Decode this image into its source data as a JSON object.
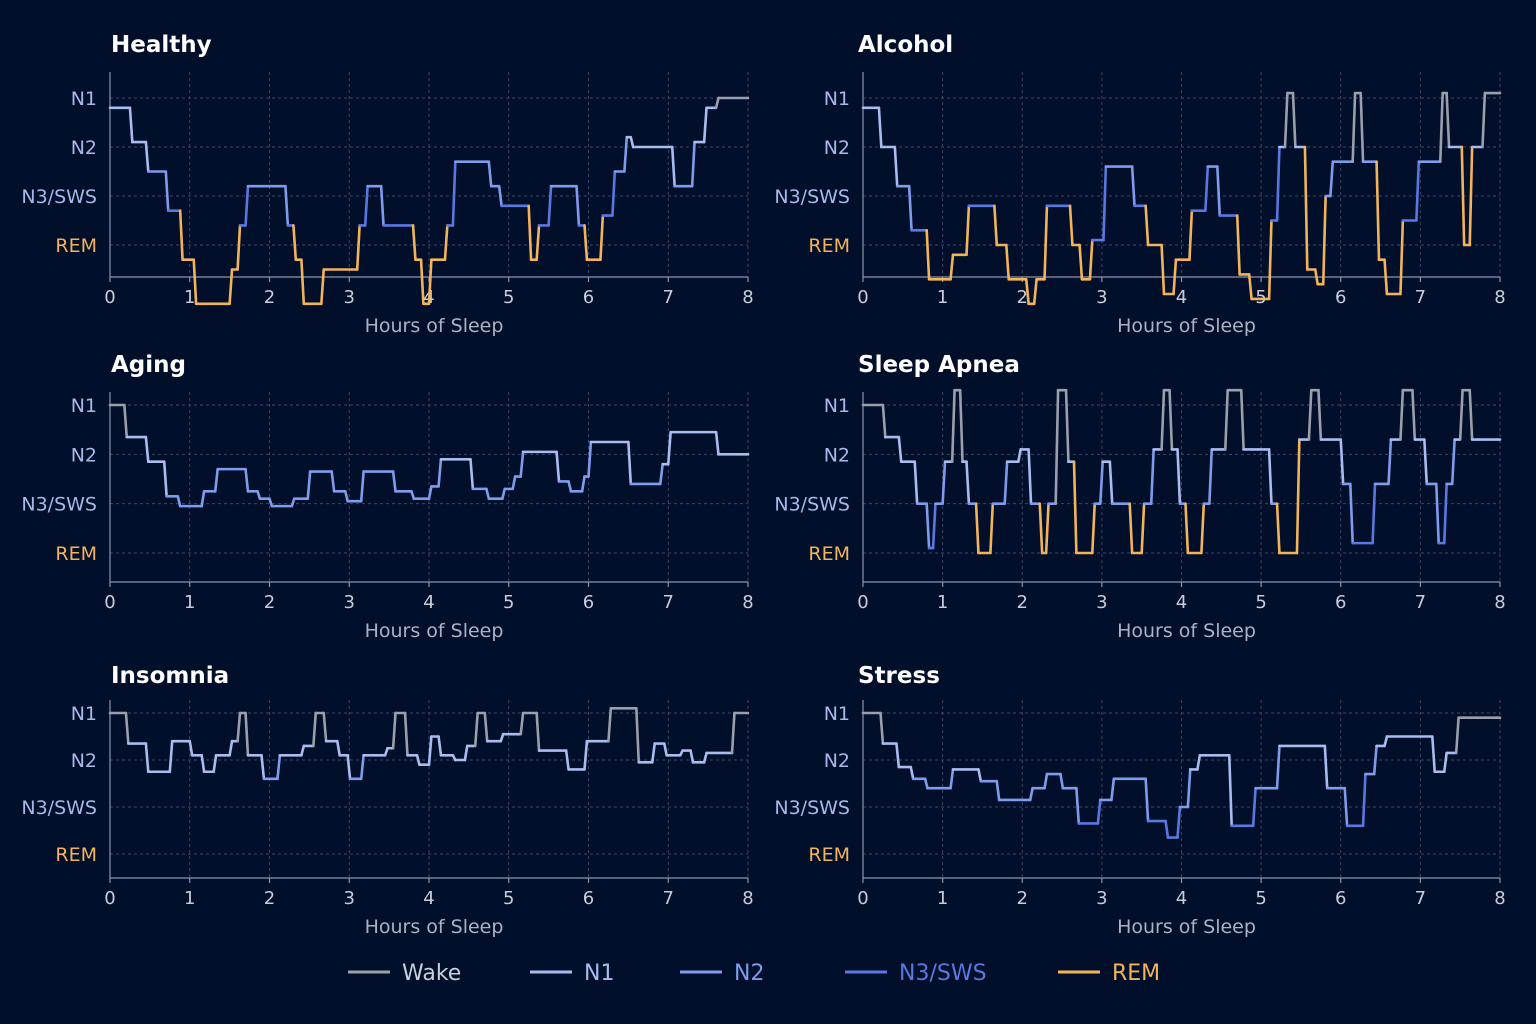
{
  "chart_data": [
    {
      "type": "line",
      "title": "Healthy",
      "xlabel": "Hours of Sleep",
      "xlim": [
        0,
        8
      ],
      "x_ticks": [
        "0",
        "1",
        "2",
        "3",
        "4",
        "5",
        "6",
        "7",
        "8"
      ],
      "y_ticks": [
        "N1",
        "N2",
        "N3/SWS",
        "REM"
      ],
      "series": [
        {
          "x": [
            0,
            0.25,
            0.28,
            0.45,
            0.48,
            0.7,
            0.73,
            0.88,
            0.91,
            1.05,
            1.08,
            1.5,
            1.53,
            1.6,
            1.63,
            1.7,
            1.73,
            2.2,
            2.23,
            2.3,
            2.33,
            2.4,
            2.43,
            2.65,
            2.68,
            3.1,
            3.13,
            3.2,
            3.23,
            3.4,
            3.43,
            3.8,
            3.83,
            3.9,
            3.93,
            4.0,
            4.03,
            4.2,
            4.23,
            4.3,
            4.33,
            4.75,
            4.78,
            4.88,
            4.91,
            5.25,
            5.28,
            5.35,
            5.38,
            5.5,
            5.53,
            5.85,
            5.88,
            5.95,
            5.98,
            6.15,
            6.18,
            6.3,
            6.33,
            6.45,
            6.48,
            6.53,
            6.56,
            7.05,
            7.08,
            7.3,
            7.33,
            7.45,
            7.48,
            7.6,
            7.63,
            8.0
          ],
          "y": [
            0.2,
            0.2,
            0.9,
            0.9,
            1.5,
            1.5,
            2.3,
            2.3,
            3.3,
            3.3,
            4.2,
            4.2,
            3.5,
            3.5,
            2.6,
            2.6,
            1.8,
            1.8,
            2.6,
            2.6,
            3.3,
            3.3,
            4.2,
            4.2,
            3.5,
            3.5,
            2.6,
            2.6,
            1.8,
            1.8,
            2.6,
            2.6,
            3.3,
            3.3,
            4.2,
            4.2,
            3.3,
            3.3,
            2.6,
            2.6,
            1.3,
            1.3,
            1.8,
            1.8,
            2.2,
            2.2,
            3.3,
            3.3,
            2.6,
            2.6,
            1.8,
            1.8,
            2.6,
            2.6,
            3.3,
            3.3,
            2.4,
            2.4,
            1.5,
            1.5,
            0.8,
            0.8,
            1.0,
            1.0,
            1.8,
            1.8,
            0.9,
            0.9,
            0.2,
            0.2,
            0.0,
            0.0
          ]
        }
      ]
    },
    {
      "type": "line",
      "title": "Alcohol",
      "xlabel": "Hours of Sleep",
      "xlim": [
        0,
        8
      ],
      "x_ticks": [
        "0",
        "1",
        "2",
        "3",
        "4",
        "5",
        "6",
        "7",
        "8"
      ],
      "y_ticks": [
        "N1",
        "N2",
        "N3/SWS",
        "REM"
      ],
      "series": [
        {
          "x": [
            0,
            0.2,
            0.23,
            0.4,
            0.43,
            0.58,
            0.61,
            0.8,
            0.83,
            1.1,
            1.13,
            1.3,
            1.33,
            1.65,
            1.68,
            1.8,
            1.83,
            2.05,
            2.08,
            2.15,
            2.18,
            2.28,
            2.31,
            2.6,
            2.63,
            2.72,
            2.75,
            2.85,
            2.88,
            3.02,
            3.05,
            3.38,
            3.41,
            3.55,
            3.58,
            3.75,
            3.78,
            3.9,
            3.93,
            4.1,
            4.13,
            4.3,
            4.33,
            4.45,
            4.48,
            4.7,
            4.73,
            4.85,
            4.88,
            5.1,
            5.13,
            5.2,
            5.23,
            5.3,
            5.33,
            5.4,
            5.43,
            5.55,
            5.58,
            5.68,
            5.71,
            5.78,
            5.81,
            5.87,
            5.9,
            6.15,
            6.18,
            6.25,
            6.28,
            6.45,
            6.48,
            6.55,
            6.58,
            6.75,
            6.78,
            6.95,
            6.98,
            7.25,
            7.28,
            7.33,
            7.36,
            7.52,
            7.55,
            7.62,
            7.65,
            7.78,
            7.81,
            8.0
          ],
          "y": [
            0.2,
            0.2,
            1.0,
            1.0,
            1.8,
            1.8,
            2.7,
            2.7,
            3.7,
            3.7,
            3.2,
            3.2,
            2.2,
            2.2,
            3.0,
            3.0,
            3.7,
            3.7,
            4.2,
            4.2,
            3.7,
            3.7,
            2.2,
            2.2,
            3.0,
            3.0,
            3.7,
            3.7,
            2.9,
            2.9,
            1.4,
            1.4,
            2.2,
            2.2,
            3.0,
            3.0,
            4.0,
            4.0,
            3.3,
            3.3,
            2.3,
            2.3,
            1.4,
            1.4,
            2.4,
            2.4,
            3.6,
            3.6,
            4.1,
            4.1,
            2.5,
            2.5,
            1.0,
            1.0,
            -0.1,
            -0.1,
            1.0,
            1.0,
            3.5,
            3.5,
            3.8,
            3.8,
            2.0,
            2.0,
            1.3,
            1.3,
            -0.1,
            -0.1,
            1.3,
            1.3,
            3.3,
            3.3,
            4.0,
            4.0,
            2.5,
            2.5,
            1.3,
            1.3,
            -0.1,
            -0.1,
            1.0,
            1.0,
            3.0,
            3.0,
            1.0,
            1.0,
            -0.1,
            -0.1
          ]
        }
      ]
    },
    {
      "type": "line",
      "title": "Aging",
      "xlabel": "Hours of Sleep",
      "xlim": [
        0,
        8
      ],
      "x_ticks": [
        "0",
        "1",
        "2",
        "3",
        "4",
        "5",
        "6",
        "7",
        "8"
      ],
      "y_ticks": [
        "N1",
        "N2",
        "N3/SWS",
        "REM"
      ],
      "series": [
        {
          "x": [
            0,
            0.18,
            0.21,
            0.45,
            0.48,
            0.68,
            0.71,
            0.85,
            0.88,
            1.15,
            1.18,
            1.32,
            1.35,
            1.7,
            1.73,
            1.85,
            1.88,
            2.0,
            2.03,
            2.28,
            2.31,
            2.48,
            2.51,
            2.78,
            2.81,
            2.95,
            2.98,
            3.15,
            3.18,
            3.55,
            3.58,
            3.78,
            3.81,
            4.0,
            4.03,
            4.12,
            4.15,
            4.52,
            4.55,
            4.72,
            4.75,
            4.92,
            4.95,
            5.05,
            5.08,
            5.15,
            5.18,
            5.6,
            5.63,
            5.75,
            5.78,
            5.92,
            5.95,
            6.0,
            6.03,
            6.5,
            6.53,
            6.9,
            6.93,
            7.0,
            7.03,
            7.6,
            7.63,
            8.0
          ],
          "y": [
            0.0,
            0.0,
            0.65,
            0.65,
            1.15,
            1.15,
            1.85,
            1.85,
            2.05,
            2.05,
            1.75,
            1.75,
            1.3,
            1.3,
            1.75,
            1.75,
            1.9,
            1.9,
            2.05,
            2.05,
            1.9,
            1.9,
            1.35,
            1.35,
            1.75,
            1.75,
            1.95,
            1.95,
            1.35,
            1.35,
            1.75,
            1.75,
            1.9,
            1.9,
            1.65,
            1.65,
            1.1,
            1.1,
            1.7,
            1.7,
            1.9,
            1.9,
            1.7,
            1.7,
            1.45,
            1.45,
            0.95,
            0.95,
            1.55,
            1.55,
            1.75,
            1.75,
            1.45,
            1.45,
            0.75,
            0.75,
            1.6,
            1.6,
            1.2,
            1.2,
            0.55,
            0.55,
            1.0,
            1.0
          ]
        }
      ]
    },
    {
      "type": "line",
      "title": "Sleep Apnea",
      "xlabel": "Hours of Sleep",
      "xlim": [
        0,
        8
      ],
      "x_ticks": [
        "0",
        "1",
        "2",
        "3",
        "4",
        "5",
        "6",
        "7",
        "8"
      ],
      "y_ticks": [
        "N1",
        "N2",
        "N3/SWS",
        "REM"
      ],
      "series": [
        {
          "x": [
            0,
            0.25,
            0.28,
            0.45,
            0.48,
            0.65,
            0.68,
            0.8,
            0.83,
            0.88,
            0.91,
            1.0,
            1.03,
            1.12,
            1.15,
            1.22,
            1.25,
            1.3,
            1.33,
            1.42,
            1.45,
            1.6,
            1.63,
            1.78,
            1.81,
            1.95,
            1.98,
            2.08,
            2.11,
            2.22,
            2.25,
            2.3,
            2.33,
            2.42,
            2.45,
            2.55,
            2.58,
            2.65,
            2.68,
            2.88,
            2.91,
            2.98,
            3.01,
            3.1,
            3.13,
            3.35,
            3.38,
            3.5,
            3.53,
            3.62,
            3.65,
            3.75,
            3.78,
            3.85,
            3.88,
            3.95,
            3.98,
            4.05,
            4.08,
            4.25,
            4.28,
            4.35,
            4.38,
            4.55,
            4.58,
            4.75,
            4.78,
            5.1,
            5.13,
            5.2,
            5.23,
            5.45,
            5.48,
            5.6,
            5.63,
            5.72,
            5.75,
            6.0,
            6.03,
            6.12,
            6.15,
            6.4,
            6.43,
            6.6,
            6.63,
            6.75,
            6.78,
            6.9,
            6.93,
            7.05,
            7.08,
            7.2,
            7.23,
            7.3,
            7.33,
            7.4,
            7.43,
            7.5,
            7.53,
            7.62,
            7.65,
            7.72,
            7.75,
            8.0
          ],
          "y": [
            0.0,
            0.0,
            0.65,
            0.65,
            1.15,
            1.15,
            2.0,
            2.0,
            2.9,
            2.9,
            2.0,
            2.0,
            1.15,
            1.15,
            -0.3,
            -0.3,
            1.15,
            1.15,
            2.0,
            2.0,
            3.0,
            3.0,
            2.0,
            2.0,
            1.15,
            1.15,
            0.9,
            0.9,
            2.0,
            2.0,
            3.0,
            3.0,
            2.0,
            2.0,
            -0.3,
            -0.3,
            1.15,
            1.15,
            3.0,
            3.0,
            2.0,
            2.0,
            1.15,
            1.15,
            2.0,
            2.0,
            3.0,
            3.0,
            2.0,
            2.0,
            0.9,
            0.9,
            -0.3,
            -0.3,
            0.9,
            0.9,
            2.0,
            2.0,
            3.0,
            3.0,
            2.0,
            2.0,
            0.9,
            0.9,
            -0.3,
            -0.3,
            0.9,
            0.9,
            2.0,
            2.0,
            3.0,
            3.0,
            0.7,
            0.7,
            -0.3,
            -0.3,
            0.7,
            0.7,
            1.6,
            1.6,
            2.8,
            2.8,
            1.6,
            1.6,
            0.7,
            0.7,
            -0.3,
            -0.3,
            0.7,
            0.7,
            1.6,
            1.6,
            2.8,
            2.8,
            1.6,
            1.6,
            0.7,
            0.7,
            -0.3,
            -0.3,
            0.7,
            0.7,
            0.7,
            0.7
          ]
        }
      ]
    },
    {
      "type": "line",
      "title": "Insomnia",
      "xlabel": "Hours of Sleep",
      "xlim": [
        0,
        8
      ],
      "x_ticks": [
        "0",
        "1",
        "2",
        "3",
        "4",
        "5",
        "6",
        "7",
        "8"
      ],
      "y_ticks": [
        "N1",
        "N2",
        "N3/SWS",
        "REM"
      ],
      "series": [
        {
          "x": [
            0,
            0.2,
            0.23,
            0.45,
            0.48,
            0.75,
            0.78,
            1.0,
            1.03,
            1.15,
            1.18,
            1.3,
            1.33,
            1.5,
            1.53,
            1.6,
            1.63,
            1.7,
            1.73,
            1.9,
            1.93,
            2.1,
            2.13,
            2.4,
            2.43,
            2.55,
            2.58,
            2.68,
            2.71,
            2.85,
            2.88,
            2.98,
            3.01,
            3.15,
            3.18,
            3.45,
            3.48,
            3.55,
            3.58,
            3.7,
            3.73,
            3.85,
            3.88,
            4.0,
            4.03,
            4.12,
            4.15,
            4.3,
            4.33,
            4.45,
            4.48,
            4.58,
            4.61,
            4.7,
            4.73,
            4.9,
            4.93,
            5.15,
            5.18,
            5.35,
            5.38,
            5.72,
            5.75,
            5.95,
            5.98,
            6.25,
            6.28,
            6.6,
            6.63,
            6.8,
            6.83,
            6.95,
            6.98,
            7.15,
            7.18,
            7.28,
            7.31,
            7.45,
            7.48,
            7.8,
            7.83,
            8.0
          ],
          "y": [
            0.0,
            0.0,
            0.65,
            0.65,
            1.25,
            1.25,
            0.6,
            0.6,
            0.9,
            0.9,
            1.25,
            1.25,
            0.9,
            0.9,
            0.6,
            0.6,
            0.0,
            0.0,
            0.9,
            0.9,
            1.4,
            1.4,
            0.9,
            0.9,
            0.7,
            0.7,
            0.0,
            0.0,
            0.6,
            0.6,
            0.9,
            0.9,
            1.4,
            1.4,
            0.9,
            0.9,
            0.75,
            0.75,
            0.0,
            0.0,
            0.9,
            0.9,
            1.1,
            1.1,
            0.5,
            0.5,
            0.9,
            0.9,
            1.0,
            1.0,
            0.7,
            0.7,
            0.0,
            0.0,
            0.6,
            0.6,
            0.45,
            0.45,
            0.0,
            0.0,
            0.8,
            0.8,
            1.2,
            1.2,
            0.6,
            0.6,
            -0.1,
            -0.1,
            1.05,
            1.05,
            0.65,
            0.65,
            0.9,
            0.9,
            0.8,
            0.8,
            1.05,
            1.05,
            0.85,
            0.85,
            0.0,
            0.0
          ]
        }
      ]
    },
    {
      "type": "line",
      "title": "Stress",
      "xlabel": "Hours of Sleep",
      "xlim": [
        0,
        8
      ],
      "x_ticks": [
        "0",
        "1",
        "2",
        "3",
        "4",
        "5",
        "6",
        "7",
        "8"
      ],
      "y_ticks": [
        "N1",
        "N2",
        "N3/SWS",
        "REM"
      ],
      "series": [
        {
          "x": [
            0,
            0.22,
            0.25,
            0.42,
            0.45,
            0.6,
            0.63,
            0.78,
            0.81,
            1.1,
            1.13,
            1.45,
            1.48,
            1.68,
            1.71,
            2.1,
            2.13,
            2.28,
            2.31,
            2.48,
            2.51,
            2.68,
            2.71,
            2.95,
            2.98,
            3.12,
            3.15,
            3.55,
            3.58,
            3.8,
            3.83,
            3.95,
            3.98,
            4.08,
            4.11,
            4.2,
            4.23,
            4.6,
            4.63,
            4.9,
            4.93,
            5.2,
            5.23,
            5.8,
            5.83,
            6.05,
            6.08,
            6.28,
            6.31,
            6.42,
            6.45,
            6.55,
            6.58,
            7.15,
            7.18,
            7.3,
            7.33,
            7.45,
            7.48,
            7.55,
            7.58,
            8.0
          ],
          "y": [
            0.0,
            0.0,
            0.65,
            0.65,
            1.15,
            1.15,
            1.4,
            1.4,
            1.6,
            1.6,
            1.2,
            1.2,
            1.45,
            1.45,
            1.85,
            1.85,
            1.6,
            1.6,
            1.3,
            1.3,
            1.6,
            1.6,
            2.35,
            2.35,
            1.85,
            1.85,
            1.4,
            1.4,
            2.3,
            2.3,
            2.65,
            2.65,
            2.0,
            2.0,
            1.2,
            1.2,
            0.9,
            0.9,
            2.4,
            2.4,
            1.6,
            1.6,
            0.7,
            0.7,
            1.6,
            1.6,
            2.4,
            2.4,
            1.3,
            1.3,
            0.7,
            0.7,
            0.5,
            0.5,
            1.25,
            1.25,
            0.85,
            0.85,
            0.1,
            0.1,
            0.1,
            0.1
          ]
        }
      ]
    }
  ],
  "legend": [
    {
      "label": "Wake",
      "color": "#9aa0ab"
    },
    {
      "label": "N1",
      "color": "#a8bcf0"
    },
    {
      "label": "N2",
      "color": "#7f9cec"
    },
    {
      "label": "N3/SWS",
      "color": "#5a78e0"
    },
    {
      "label": "REM",
      "color": "#f1b45a"
    }
  ],
  "colors": {
    "background": "#020f2b",
    "ytick_stage": "#a8b8ea",
    "ytick_rem": "#f1b45a"
  }
}
